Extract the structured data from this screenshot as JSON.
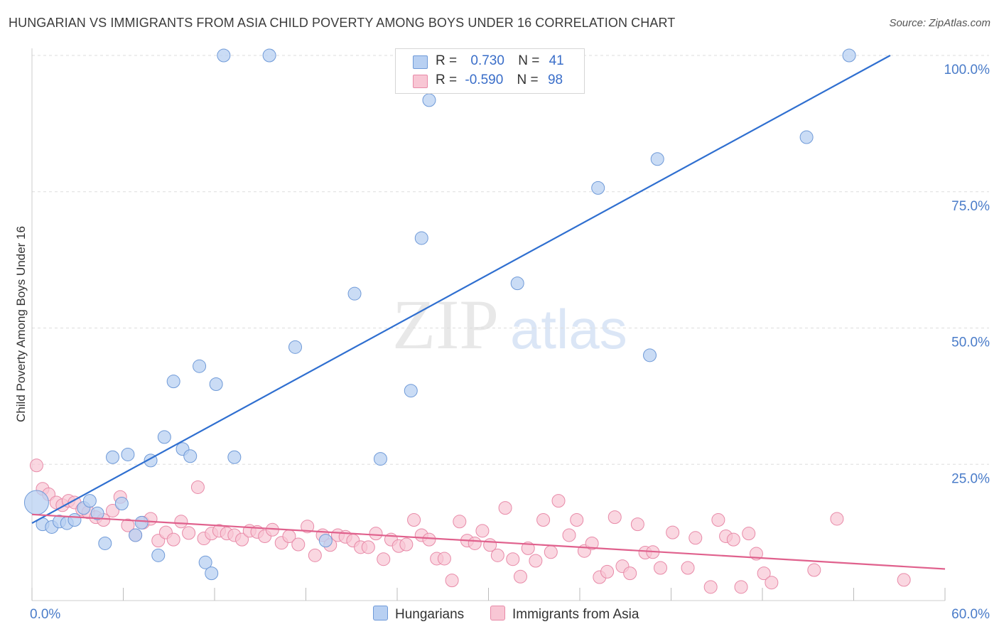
{
  "title": "HUNGARIAN VS IMMIGRANTS FROM ASIA CHILD POVERTY AMONG BOYS UNDER 16 CORRELATION CHART",
  "source": "Source: ZipAtlas.com",
  "watermark": {
    "zip": "ZIP",
    "atlas": "atlas"
  },
  "legend": {
    "rows": [
      {
        "r_label": "R =",
        "r_value": "0.730",
        "n_label": "N =",
        "n_value": "41"
      },
      {
        "r_label": "R =",
        "r_value": "-0.590",
        "n_label": "N =",
        "n_value": "98"
      }
    ]
  },
  "colors": {
    "hungarians_fill": "#b8d0f2",
    "hungarians_stroke": "#6f9ad8",
    "hungarians_line": "#2f6fd0",
    "asia_fill": "#f8c6d4",
    "asia_stroke": "#e88aa8",
    "asia_line": "#e0618d",
    "tick_label": "#4a7cc9",
    "grid": "#dddddd"
  },
  "chart_data": {
    "type": "scatter",
    "title": "HUNGARIAN VS IMMIGRANTS FROM ASIA CHILD POVERTY AMONG BOYS UNDER 16 CORRELATION CHART",
    "xlabel": "",
    "ylabel": "Child Poverty Among Boys Under 16",
    "xlim": [
      0,
      60
    ],
    "ylim": [
      0,
      102
    ],
    "x_tick_labels": [
      "0.0%",
      "60.0%"
    ],
    "y_ticks": [
      25,
      50,
      75,
      100
    ],
    "y_tick_labels": [
      "25.0%",
      "50.0%",
      "75.0%",
      "100.0%"
    ],
    "grid": true,
    "legend_position": "top-center",
    "series": [
      {
        "name": "Hungarians",
        "r": 0.73,
        "n": 41,
        "trend": {
          "x": [
            0,
            56.4
          ],
          "y": [
            14.2,
            100
          ]
        },
        "points": [
          {
            "x": 0.3,
            "y": 18.0,
            "big": true
          },
          {
            "x": 0.7,
            "y": 14.0
          },
          {
            "x": 1.3,
            "y": 13.5
          },
          {
            "x": 1.8,
            "y": 14.5
          },
          {
            "x": 2.3,
            "y": 14.2
          },
          {
            "x": 2.8,
            "y": 14.8
          },
          {
            "x": 3.4,
            "y": 17.0
          },
          {
            "x": 3.8,
            "y": 18.3
          },
          {
            "x": 4.3,
            "y": 16.0
          },
          {
            "x": 4.8,
            "y": 10.5
          },
          {
            "x": 5.3,
            "y": 26.3
          },
          {
            "x": 5.9,
            "y": 17.8
          },
          {
            "x": 6.3,
            "y": 26.8
          },
          {
            "x": 6.8,
            "y": 12.0
          },
          {
            "x": 7.2,
            "y": 14.3
          },
          {
            "x": 7.8,
            "y": 25.7
          },
          {
            "x": 8.3,
            "y": 8.3
          },
          {
            "x": 8.7,
            "y": 30.0
          },
          {
            "x": 9.3,
            "y": 40.2
          },
          {
            "x": 9.9,
            "y": 27.8
          },
          {
            "x": 10.4,
            "y": 26.5
          },
          {
            "x": 11.0,
            "y": 43.0
          },
          {
            "x": 11.4,
            "y": 7.0
          },
          {
            "x": 11.8,
            "y": 5.0
          },
          {
            "x": 12.1,
            "y": 39.7
          },
          {
            "x": 12.6,
            "y": 100.0
          },
          {
            "x": 13.3,
            "y": 26.3
          },
          {
            "x": 15.6,
            "y": 100.0
          },
          {
            "x": 17.3,
            "y": 46.5
          },
          {
            "x": 19.3,
            "y": 11.0
          },
          {
            "x": 21.2,
            "y": 56.3
          },
          {
            "x": 22.9,
            "y": 26.0
          },
          {
            "x": 24.9,
            "y": 38.5
          },
          {
            "x": 25.6,
            "y": 66.5
          },
          {
            "x": 26.1,
            "y": 91.8
          },
          {
            "x": 31.9,
            "y": 58.2
          },
          {
            "x": 37.2,
            "y": 75.7
          },
          {
            "x": 40.6,
            "y": 45.0
          },
          {
            "x": 41.1,
            "y": 81.0
          },
          {
            "x": 50.9,
            "y": 85.0
          },
          {
            "x": 53.7,
            "y": 100.0
          }
        ]
      },
      {
        "name": "Immigrants from Asia",
        "r": -0.59,
        "n": 98,
        "trend": {
          "x": [
            0,
            60
          ],
          "y": [
            15.8,
            5.8
          ]
        },
        "points": [
          {
            "x": 0.3,
            "y": 24.8
          },
          {
            "x": 0.7,
            "y": 20.5
          },
          {
            "x": 1.1,
            "y": 19.5
          },
          {
            "x": 1.6,
            "y": 18.0
          },
          {
            "x": 2.0,
            "y": 17.5
          },
          {
            "x": 2.4,
            "y": 18.3
          },
          {
            "x": 2.8,
            "y": 18.0
          },
          {
            "x": 3.3,
            "y": 16.7
          },
          {
            "x": 3.7,
            "y": 16.2
          },
          {
            "x": 4.2,
            "y": 15.3
          },
          {
            "x": 4.7,
            "y": 14.8
          },
          {
            "x": 5.3,
            "y": 16.5
          },
          {
            "x": 5.8,
            "y": 19.0
          },
          {
            "x": 6.3,
            "y": 13.8
          },
          {
            "x": 6.8,
            "y": 12.0
          },
          {
            "x": 7.3,
            "y": 14.3
          },
          {
            "x": 7.8,
            "y": 15.0
          },
          {
            "x": 8.3,
            "y": 11.0
          },
          {
            "x": 8.8,
            "y": 12.5
          },
          {
            "x": 9.3,
            "y": 11.2
          },
          {
            "x": 9.8,
            "y": 14.5
          },
          {
            "x": 10.3,
            "y": 12.4
          },
          {
            "x": 10.9,
            "y": 20.8
          },
          {
            "x": 11.3,
            "y": 11.4
          },
          {
            "x": 11.8,
            "y": 12.3
          },
          {
            "x": 12.3,
            "y": 12.8
          },
          {
            "x": 12.8,
            "y": 12.3
          },
          {
            "x": 13.3,
            "y": 12.0
          },
          {
            "x": 13.8,
            "y": 11.2
          },
          {
            "x": 14.3,
            "y": 12.8
          },
          {
            "x": 14.8,
            "y": 12.6
          },
          {
            "x": 15.3,
            "y": 11.8
          },
          {
            "x": 15.8,
            "y": 13.0
          },
          {
            "x": 16.4,
            "y": 10.6
          },
          {
            "x": 16.9,
            "y": 11.8
          },
          {
            "x": 17.5,
            "y": 10.3
          },
          {
            "x": 18.1,
            "y": 13.6
          },
          {
            "x": 18.6,
            "y": 8.3
          },
          {
            "x": 19.1,
            "y": 12.0
          },
          {
            "x": 19.6,
            "y": 10.2
          },
          {
            "x": 20.1,
            "y": 12.0
          },
          {
            "x": 20.6,
            "y": 11.7
          },
          {
            "x": 21.1,
            "y": 11.0
          },
          {
            "x": 21.6,
            "y": 9.8
          },
          {
            "x": 22.1,
            "y": 9.8
          },
          {
            "x": 22.6,
            "y": 12.3
          },
          {
            "x": 23.1,
            "y": 7.6
          },
          {
            "x": 23.6,
            "y": 11.2
          },
          {
            "x": 24.1,
            "y": 10.0
          },
          {
            "x": 24.6,
            "y": 10.3
          },
          {
            "x": 25.1,
            "y": 14.8
          },
          {
            "x": 25.6,
            "y": 12.0
          },
          {
            "x": 26.1,
            "y": 11.2
          },
          {
            "x": 26.6,
            "y": 7.7
          },
          {
            "x": 27.1,
            "y": 7.7
          },
          {
            "x": 27.6,
            "y": 3.7
          },
          {
            "x": 28.1,
            "y": 14.5
          },
          {
            "x": 28.6,
            "y": 11.0
          },
          {
            "x": 29.1,
            "y": 10.5
          },
          {
            "x": 29.6,
            "y": 12.8
          },
          {
            "x": 30.1,
            "y": 10.2
          },
          {
            "x": 30.6,
            "y": 8.3
          },
          {
            "x": 31.1,
            "y": 17.0
          },
          {
            "x": 31.6,
            "y": 7.6
          },
          {
            "x": 32.1,
            "y": 4.4
          },
          {
            "x": 32.6,
            "y": 9.6
          },
          {
            "x": 33.1,
            "y": 7.3
          },
          {
            "x": 33.6,
            "y": 14.8
          },
          {
            "x": 34.1,
            "y": 8.9
          },
          {
            "x": 34.6,
            "y": 18.3
          },
          {
            "x": 35.3,
            "y": 12.0
          },
          {
            "x": 35.8,
            "y": 14.8
          },
          {
            "x": 36.3,
            "y": 9.1
          },
          {
            "x": 36.8,
            "y": 10.5
          },
          {
            "x": 37.3,
            "y": 4.3
          },
          {
            "x": 37.8,
            "y": 5.3
          },
          {
            "x": 38.3,
            "y": 15.3
          },
          {
            "x": 38.8,
            "y": 6.3
          },
          {
            "x": 39.3,
            "y": 5.0
          },
          {
            "x": 39.8,
            "y": 14.0
          },
          {
            "x": 40.3,
            "y": 8.8
          },
          {
            "x": 40.8,
            "y": 8.9
          },
          {
            "x": 41.3,
            "y": 6.0
          },
          {
            "x": 42.1,
            "y": 12.5
          },
          {
            "x": 43.1,
            "y": 6.0
          },
          {
            "x": 43.6,
            "y": 11.5
          },
          {
            "x": 44.6,
            "y": 2.5
          },
          {
            "x": 45.1,
            "y": 14.8
          },
          {
            "x": 45.6,
            "y": 11.8
          },
          {
            "x": 46.1,
            "y": 11.2
          },
          {
            "x": 46.6,
            "y": 2.5
          },
          {
            "x": 47.1,
            "y": 12.3
          },
          {
            "x": 47.6,
            "y": 8.6
          },
          {
            "x": 48.1,
            "y": 5.0
          },
          {
            "x": 48.6,
            "y": 3.3
          },
          {
            "x": 51.4,
            "y": 5.6
          },
          {
            "x": 52.9,
            "y": 15.0
          },
          {
            "x": 57.3,
            "y": 3.8
          }
        ]
      }
    ]
  },
  "bottom_legend": [
    "Hungarians",
    "Immigrants from Asia"
  ]
}
